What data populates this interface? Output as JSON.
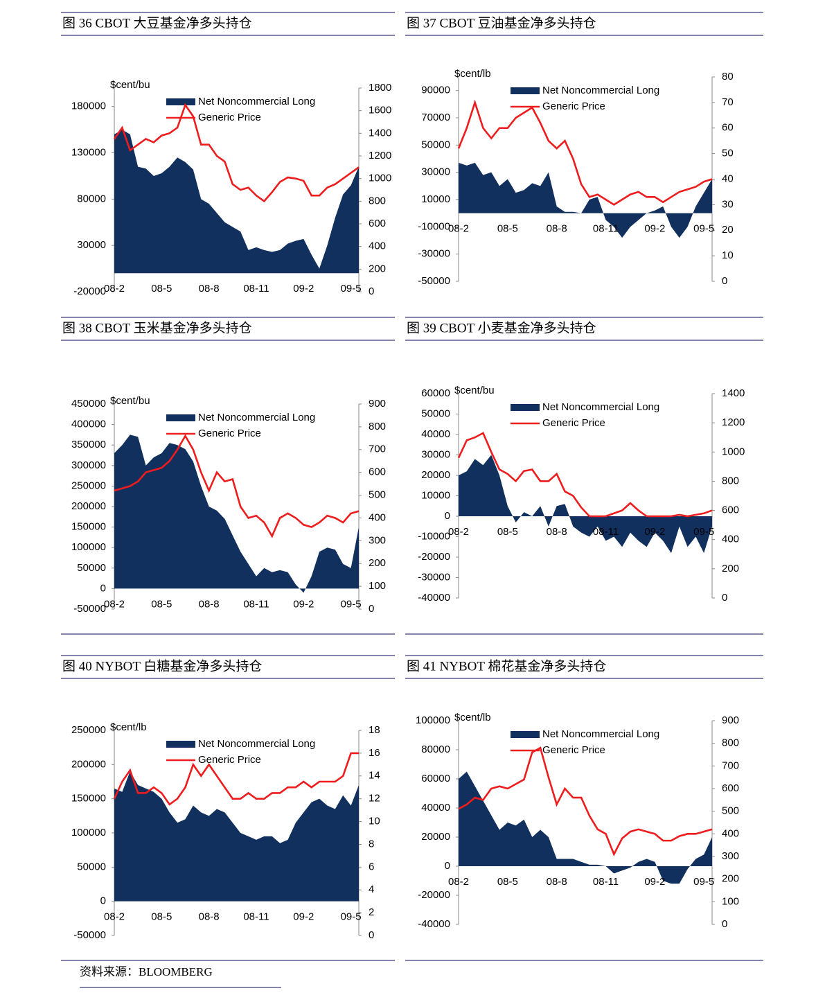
{
  "chart_data": [
    {
      "type": "combo",
      "title": "图 36 CBOT 大豆基金净多头持仓",
      "y2_label": "$cent/bu",
      "categories": [
        "08-2",
        null,
        null,
        null,
        null,
        null,
        "08-5",
        null,
        null,
        null,
        null,
        null,
        "08-8",
        null,
        null,
        null,
        null,
        null,
        "08-11",
        null,
        null,
        null,
        null,
        null,
        "09-2",
        null,
        null,
        null,
        null,
        null,
        "09-5",
        null
      ],
      "ylim": [
        -20000,
        200000
      ],
      "yticks": [
        -20000,
        30000,
        80000,
        130000,
        180000
      ],
      "y2lim": [
        0,
        1800
      ],
      "y2ticks": [
        0,
        200,
        400,
        600,
        800,
        1000,
        1200,
        1400,
        1600,
        1800
      ],
      "series": [
        {
          "name": "Net Noncommercial Long",
          "color": "#12305e",
          "values": [
            150000,
            155000,
            150000,
            115000,
            113000,
            105000,
            108000,
            115000,
            125000,
            120000,
            112000,
            80000,
            75000,
            65000,
            55000,
            50000,
            45000,
            25000,
            28000,
            25000,
            23000,
            25000,
            32000,
            35000,
            37000,
            20000,
            5000,
            30000,
            60000,
            85000,
            95000,
            115000
          ]
        },
        {
          "name": "Generic Price",
          "color": "#ee1c1c",
          "axis": "y2",
          "values": [
            1350,
            1450,
            1250,
            1300,
            1350,
            1320,
            1380,
            1400,
            1450,
            1650,
            1550,
            1300,
            1300,
            1200,
            1150,
            950,
            900,
            920,
            850,
            800,
            880,
            970,
            1010,
            1000,
            980,
            850,
            850,
            920,
            950,
            1000,
            1050,
            1100
          ]
        }
      ]
    },
    {
      "type": "combo",
      "title": "图 37 CBOT 豆油基金净多头持仓",
      "y2_label": "$cent/lb",
      "categories": [
        "08-2",
        null,
        null,
        null,
        null,
        null,
        "08-5",
        null,
        null,
        null,
        null,
        null,
        "08-8",
        null,
        null,
        null,
        null,
        null,
        "08-11",
        null,
        null,
        null,
        null,
        null,
        "09-2",
        null,
        null,
        null,
        null,
        null,
        "09-5",
        null
      ],
      "ylim": [
        -50000,
        100000
      ],
      "yticks": [
        -50000,
        -30000,
        -10000,
        10000,
        30000,
        50000,
        70000,
        90000
      ],
      "y2lim": [
        0,
        80
      ],
      "y2ticks": [
        0,
        10,
        20,
        30,
        40,
        50,
        60,
        70,
        80
      ],
      "series": [
        {
          "name": "Net Noncommercial Long",
          "color": "#12305e",
          "values": [
            37000,
            35000,
            37000,
            28000,
            30000,
            20000,
            25000,
            15000,
            17000,
            22000,
            20000,
            30000,
            5000,
            1000,
            1000,
            0,
            10000,
            12000,
            -5000,
            -10000,
            -18000,
            -10000,
            -5000,
            0,
            2000,
            5000,
            -10000,
            -18000,
            -10000,
            5000,
            15000,
            25000
          ]
        },
        {
          "name": "Generic Price",
          "color": "#ee1c1c",
          "axis": "y2",
          "values": [
            52,
            60,
            70,
            60,
            56,
            60,
            60,
            64,
            66,
            68,
            62,
            55,
            52,
            55,
            48,
            38,
            33,
            34,
            32,
            30,
            32,
            34,
            35,
            33,
            33,
            31,
            33,
            35,
            36,
            37,
            39,
            40
          ]
        }
      ]
    },
    {
      "type": "combo",
      "title": "图 38 CBOT 玉米基金净多头持仓",
      "y2_label": "$cent/bu",
      "categories": [
        "08-2",
        null,
        null,
        null,
        null,
        null,
        "08-5",
        null,
        null,
        null,
        null,
        null,
        "08-8",
        null,
        null,
        null,
        null,
        null,
        "08-11",
        null,
        null,
        null,
        null,
        null,
        "09-2",
        null,
        null,
        null,
        null,
        null,
        "09-5",
        null
      ],
      "ylim": [
        -50000,
        450000
      ],
      "yticks": [
        -50000,
        0,
        50000,
        100000,
        150000,
        200000,
        250000,
        300000,
        350000,
        400000,
        450000
      ],
      "y2lim": [
        0,
        900
      ],
      "y2ticks": [
        0,
        100,
        200,
        300,
        400,
        500,
        600,
        700,
        800,
        900
      ],
      "series": [
        {
          "name": "Net Noncommercial Long",
          "color": "#12305e",
          "values": [
            330000,
            350000,
            375000,
            370000,
            300000,
            320000,
            330000,
            355000,
            350000,
            340000,
            310000,
            250000,
            200000,
            190000,
            170000,
            130000,
            90000,
            60000,
            30000,
            50000,
            40000,
            45000,
            40000,
            10000,
            -10000,
            30000,
            90000,
            100000,
            95000,
            60000,
            50000,
            150000
          ]
        },
        {
          "name": "Generic Price",
          "color": "#ee1c1c",
          "axis": "y2",
          "values": [
            520,
            530,
            540,
            560,
            600,
            610,
            620,
            650,
            700,
            760,
            700,
            600,
            520,
            600,
            560,
            570,
            450,
            400,
            410,
            380,
            320,
            400,
            420,
            400,
            370,
            360,
            380,
            410,
            400,
            380,
            420,
            430
          ]
        }
      ]
    },
    {
      "type": "combo",
      "title": "图 39 CBOT 小麦基金净多头持仓",
      "y2_label": "$cent/bu",
      "categories": [
        "08-2",
        null,
        null,
        null,
        null,
        null,
        "08-5",
        null,
        null,
        null,
        null,
        null,
        "08-8",
        null,
        null,
        null,
        null,
        null,
        "08-11",
        null,
        null,
        null,
        null,
        null,
        "09-2",
        null,
        null,
        null,
        null,
        null,
        "09-5",
        null
      ],
      "ylim": [
        -40000,
        60000
      ],
      "yticks": [
        -40000,
        -30000,
        -20000,
        -10000,
        0,
        10000,
        20000,
        30000,
        40000,
        50000,
        60000
      ],
      "y2lim": [
        0,
        1400
      ],
      "y2ticks": [
        0,
        200,
        400,
        600,
        800,
        1000,
        1200,
        1400
      ],
      "series": [
        {
          "name": "Net Noncommercial Long",
          "color": "#12305e",
          "values": [
            20000,
            22000,
            28000,
            25000,
            30000,
            20000,
            5000,
            -3000,
            2000,
            0,
            5000,
            -5000,
            5000,
            6000,
            -5000,
            -8000,
            -10000,
            -5000,
            -12000,
            -10000,
            -15000,
            -8000,
            -12000,
            -15000,
            -8000,
            -12000,
            -18000,
            -5000,
            -15000,
            -10000,
            -18000,
            -5000
          ]
        },
        {
          "name": "Generic Price",
          "color": "#ee1c1c",
          "axis": "y2",
          "values": [
            960,
            1080,
            1100,
            1130,
            1000,
            880,
            850,
            800,
            870,
            880,
            800,
            800,
            850,
            730,
            700,
            620,
            560,
            560,
            560,
            580,
            600,
            650,
            600,
            560,
            560,
            560,
            560,
            570,
            560,
            570,
            580,
            600
          ]
        }
      ]
    },
    {
      "type": "combo",
      "title": "图 40 NYBOT 白糖基金净多头持仓",
      "y2_label": "$cent/lb",
      "categories": [
        "08-2",
        null,
        null,
        null,
        null,
        null,
        "08-5",
        null,
        null,
        null,
        null,
        null,
        "08-8",
        null,
        null,
        null,
        null,
        null,
        "08-11",
        null,
        null,
        null,
        null,
        null,
        "09-2",
        null,
        null,
        null,
        null,
        null,
        "09-5",
        null
      ],
      "ylim": [
        -50000,
        250000
      ],
      "yticks": [
        -50000,
        0,
        50000,
        100000,
        150000,
        200000,
        250000
      ],
      "y2lim": [
        0,
        18
      ],
      "y2ticks": [
        0,
        2,
        4,
        6,
        8,
        10,
        12,
        14,
        16,
        18
      ],
      "series": [
        {
          "name": "Net Noncommercial Long",
          "color": "#12305e",
          "values": [
            165000,
            160000,
            190000,
            170000,
            165000,
            160000,
            150000,
            130000,
            115000,
            120000,
            140000,
            130000,
            125000,
            135000,
            130000,
            115000,
            100000,
            95000,
            90000,
            95000,
            95000,
            85000,
            90000,
            115000,
            130000,
            145000,
            150000,
            140000,
            135000,
            155000,
            140000,
            170000
          ]
        },
        {
          "name": "Generic Price",
          "color": "#ee1c1c",
          "axis": "y2",
          "values": [
            12,
            13.5,
            14.5,
            12.5,
            12.5,
            13,
            12.5,
            11.5,
            12,
            13,
            15,
            14,
            15,
            14,
            13,
            12,
            12,
            12.5,
            12,
            12,
            12.5,
            12.5,
            13,
            13,
            13.5,
            13,
            13.5,
            13.5,
            13.5,
            14,
            16,
            16
          ]
        }
      ]
    },
    {
      "type": "combo",
      "title": "图 41 NYBOT 棉花基金净多头持仓",
      "y2_label": "$cent/lb",
      "categories": [
        "08-2",
        null,
        null,
        null,
        null,
        null,
        "08-5",
        null,
        null,
        null,
        null,
        null,
        "08-8",
        null,
        null,
        null,
        null,
        null,
        "08-11",
        null,
        null,
        null,
        null,
        null,
        "09-2",
        null,
        null,
        null,
        null,
        null,
        "09-5",
        null
      ],
      "ylim": [
        -40000,
        100000
      ],
      "yticks": [
        -40000,
        -20000,
        0,
        20000,
        40000,
        60000,
        80000,
        100000
      ],
      "y2lim": [
        0,
        900
      ],
      "y2ticks": [
        0,
        100,
        200,
        300,
        400,
        500,
        600,
        700,
        800,
        900
      ],
      "series": [
        {
          "name": "Net Noncommercial Long",
          "color": "#12305e",
          "values": [
            60000,
            65000,
            55000,
            45000,
            35000,
            25000,
            30000,
            28000,
            32000,
            20000,
            25000,
            20000,
            5000,
            5000,
            5000,
            3000,
            1000,
            1000,
            0,
            -5000,
            -3000,
            -1000,
            3000,
            5000,
            3000,
            -10000,
            -12000,
            -12000,
            -2000,
            5000,
            8000,
            20000
          ]
        },
        {
          "name": "Generic Price",
          "color": "#ee1c1c",
          "axis": "y2",
          "values": [
            510,
            530,
            560,
            550,
            600,
            610,
            600,
            620,
            640,
            760,
            780,
            650,
            530,
            600,
            560,
            560,
            480,
            420,
            400,
            310,
            380,
            410,
            420,
            410,
            400,
            370,
            370,
            390,
            400,
            400,
            410,
            420
          ]
        }
      ]
    }
  ],
  "source": "资料来源：BLOOMBERG"
}
